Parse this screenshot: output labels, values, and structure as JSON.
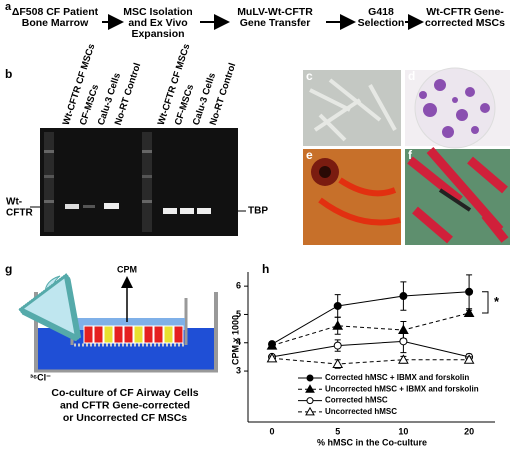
{
  "panel_a": {
    "label": "a",
    "steps": [
      [
        "ΔF508 CF Patient",
        "Bone Marrow"
      ],
      [
        "MSC Isolation",
        "and Ex Vivo",
        "Expansion"
      ],
      [
        "MuLV-Wt-CFTR",
        "Gene Transfer"
      ],
      [
        "G418",
        "Selection"
      ],
      [
        "Wt-CFTR Gene-",
        "corrected MSCs"
      ]
    ]
  },
  "panel_b": {
    "label": "b",
    "lanes": [
      "Wt-CFTR CF MSCs",
      "CF-MSCs",
      "Calu-3 Cells",
      "No-RT Control",
      "Wt-CFTR CF MSCs",
      "CF-MSCs",
      "Calu-3 Cells",
      "No-RT Control"
    ],
    "left_band": [
      "Wt-",
      "CFTR"
    ],
    "right_band": "TBP"
  },
  "micrograph_labels": [
    "c",
    "d",
    "e",
    "f"
  ],
  "panel_g": {
    "label": "g",
    "output": "CPM",
    "isotope": "³⁶Cl⁻",
    "caption": [
      "Co-culture of CF Airway Cells",
      "and CFTR Gene-corrected",
      "or Uncorrected CF MSCs"
    ]
  },
  "chart_data": {
    "type": "line",
    "panel_label": "h",
    "ylabel": "CPM x 1000",
    "xlabel": "% hMSC in the Co-culture",
    "categories": [
      "0",
      "5",
      "10",
      "20"
    ],
    "ylim": [
      1.2,
      6.5
    ],
    "yticks": [
      3,
      4,
      5,
      6
    ],
    "annotation": "*",
    "series": [
      {
        "name": "Corrected hMSC + IBMX and forskolin",
        "color": "#000000",
        "marker": "circle",
        "filled": true,
        "dashed": false,
        "values": [
          3.95,
          5.3,
          5.65,
          5.8
        ],
        "errors": [
          0.08,
          0.4,
          0.5,
          0.6
        ]
      },
      {
        "name": "Uncorrected hMSC + IBMX and forskolin",
        "color": "#000000",
        "marker": "triangle",
        "filled": true,
        "dashed": true,
        "values": [
          3.9,
          4.6,
          4.45,
          5.05
        ],
        "errors": [
          0.08,
          0.3,
          0.3,
          0.1
        ]
      },
      {
        "name": "Corrected hMSC",
        "color": "#000000",
        "marker": "circle",
        "filled": false,
        "dashed": false,
        "values": [
          3.5,
          3.9,
          4.05,
          3.5
        ],
        "errors": [
          0.08,
          0.2,
          0.4,
          0.1
        ]
      },
      {
        "name": "Uncorrected hMSC",
        "color": "#000000",
        "marker": "triangle",
        "filled": false,
        "dashed": true,
        "values": [
          3.45,
          3.25,
          3.4,
          3.4
        ],
        "errors": [
          0.08,
          0.15,
          0.12,
          0.1
        ]
      }
    ]
  }
}
